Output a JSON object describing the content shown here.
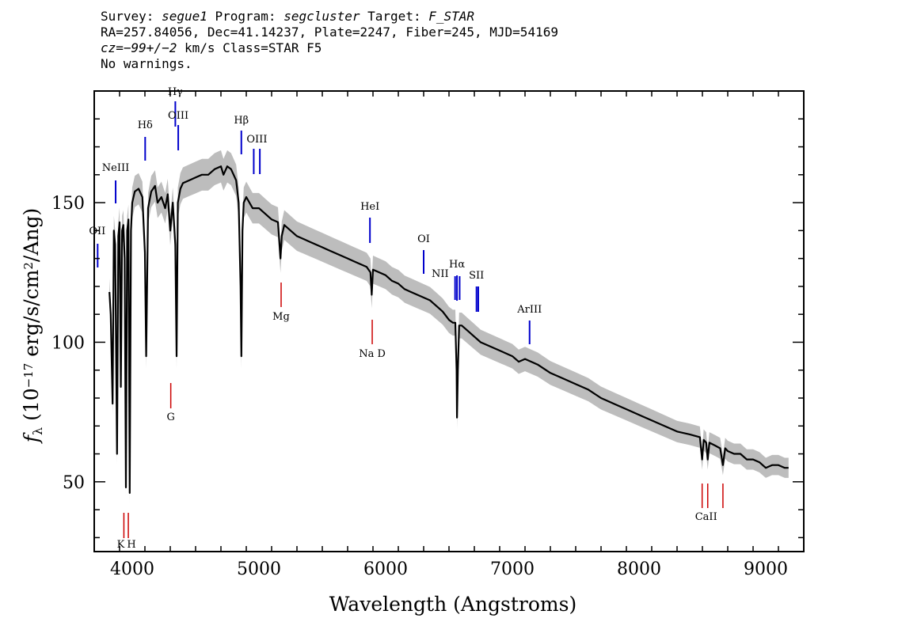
{
  "header": {
    "line1": {
      "survey_label": "Survey: ",
      "survey": "segue1",
      "program_label": " Program: ",
      "program": "segcluster",
      "target_label": " Target: ",
      "target": "F_STAR"
    },
    "line2": "RA=257.84056, Dec=41.14237, Plate=2247, Fiber=245, MJD=54169",
    "line3": {
      "cz": "cz=−99+/−2",
      "rest": " km/s Class=STAR F5"
    },
    "line4": "No warnings."
  },
  "chart_data": {
    "type": "line",
    "title": "",
    "xlabel": "Wavelength (Angstroms)",
    "ylabel": "f_λ (10^-17 erg/s/cm^2/Ang)",
    "xlim": [
      3700,
      9300
    ],
    "ylim": [
      25,
      190
    ],
    "xticks": [
      4000,
      5000,
      6000,
      7000,
      8000,
      9000
    ],
    "yticks": [
      50,
      100,
      150
    ],
    "series": [
      {
        "color": "#000000",
        "error_color": "#bdbdbd",
        "x": [
          3820,
          3830,
          3845,
          3855,
          3865,
          3880,
          3890,
          3900,
          3910,
          3920,
          3930,
          3940,
          3950,
          3960,
          3970,
          3980,
          3990,
          4000,
          4020,
          4050,
          4080,
          4100,
          4110,
          4125,
          4150,
          4180,
          4200,
          4230,
          4260,
          4280,
          4300,
          4320,
          4340,
          4350,
          4360,
          4380,
          4400,
          4450,
          4500,
          4550,
          4600,
          4650,
          4700,
          4720,
          4750,
          4780,
          4800,
          4820,
          4840,
          4855,
          4861,
          4870,
          4880,
          4900,
          4950,
          5000,
          5050,
          5100,
          5150,
          5170,
          5180,
          5200,
          5250,
          5300,
          5350,
          5400,
          5450,
          5500,
          5550,
          5600,
          5650,
          5700,
          5750,
          5800,
          5850,
          5880,
          5890,
          5900,
          5950,
          6000,
          6050,
          6100,
          6150,
          6200,
          6250,
          6300,
          6350,
          6400,
          6450,
          6500,
          6530,
          6550,
          6560,
          6563,
          6570,
          6580,
          6600,
          6650,
          6700,
          6750,
          6800,
          6900,
          7000,
          7050,
          7100,
          7200,
          7300,
          7400,
          7500,
          7600,
          7700,
          7800,
          7900,
          8000,
          8100,
          8200,
          8300,
          8400,
          8480,
          8498,
          8510,
          8530,
          8542,
          8555,
          8600,
          8640,
          8662,
          8680,
          8700,
          8750,
          8800,
          8850,
          8900,
          8950,
          9000,
          9050,
          9100,
          9150,
          9180
        ],
        "y": [
          118,
          110,
          78,
          140,
          135,
          60,
          138,
          143,
          84,
          140,
          142,
          130,
          48,
          140,
          144,
          46,
          140,
          150,
          154,
          155,
          152,
          132,
          95,
          148,
          154,
          156,
          150,
          152,
          148,
          153,
          140,
          150,
          135,
          95,
          150,
          155,
          157,
          158,
          159,
          160,
          160,
          162,
          163,
          160,
          163,
          162,
          160,
          158,
          150,
          120,
          95,
          140,
          150,
          152,
          148,
          148,
          146,
          144,
          143,
          130,
          138,
          142,
          140,
          138,
          137,
          136,
          135,
          134,
          133,
          132,
          131,
          130,
          129,
          128,
          127,
          125,
          117,
          126,
          125,
          124,
          122,
          121,
          119,
          118,
          117,
          116,
          115,
          113,
          111,
          108,
          107,
          107,
          90,
          73,
          90,
          106,
          106,
          104,
          102,
          100,
          99,
          97,
          95,
          93,
          94,
          92,
          89,
          87,
          85,
          83,
          80,
          78,
          76,
          74,
          72,
          70,
          68,
          67,
          66,
          58,
          65,
          64,
          58,
          64,
          63,
          62,
          56,
          62,
          61,
          60,
          60,
          58,
          58,
          57,
          55,
          56,
          56,
          55,
          55
        ]
      }
    ],
    "emission_lines": [
      {
        "name": "OII",
        "x": 3727
      },
      {
        "name": "NeIII",
        "x": 3869
      },
      {
        "name": "Hδ",
        "x": 4102
      },
      {
        "name": "Hγ",
        "x": 4340
      },
      {
        "name": "OIII",
        "x": 4363
      },
      {
        "name": "Hβ",
        "x": 4861
      },
      {
        "name": "OIII",
        "x": 4959
      },
      {
        "name": "OIII",
        "x": 5007
      },
      {
        "name": "HeI",
        "x": 5876
      },
      {
        "name": "OI",
        "x": 6300
      },
      {
        "name": "NII",
        "x": 6548
      },
      {
        "name": "Hα",
        "x": 6563
      },
      {
        "name": "NII",
        "x": 6584
      },
      {
        "name": "SII",
        "x": 6717
      },
      {
        "name": "SII",
        "x": 6731
      },
      {
        "name": "ArIII",
        "x": 7136
      }
    ],
    "absorption_lines": [
      {
        "name": "K",
        "x": 3934
      },
      {
        "name": "H",
        "x": 3969
      },
      {
        "name": "G",
        "x": 4304
      },
      {
        "name": "Mg",
        "x": 5175
      },
      {
        "name": "Na D",
        "x": 5894
      },
      {
        "name": "CaII",
        "x": 8498
      },
      {
        "name": "CaII",
        "x": 8542
      },
      {
        "name": "CaII",
        "x": 8662
      }
    ],
    "emission_color": "#0000cc",
    "absorption_color": "#cc0000",
    "grid": false,
    "legend": "none"
  }
}
